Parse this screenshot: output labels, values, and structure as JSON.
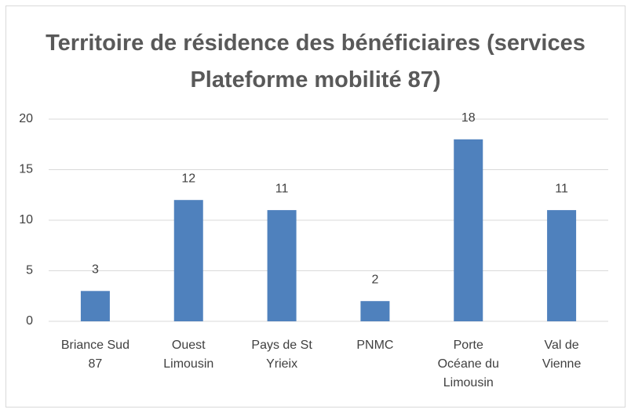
{
  "chart_data": {
    "type": "bar",
    "title": "Territoire de résidence des bénéficiaires (services Plateforme mobilité 87)",
    "categories": [
      "Briance Sud 87",
      "Ouest Limousin",
      "Pays de St Yrieix",
      "PNMC",
      "Porte Océane du Limousin",
      "Val de Vienne"
    ],
    "values": [
      3,
      12,
      11,
      2,
      18,
      11
    ],
    "color": "#4f81bd",
    "ylim": [
      0,
      20
    ],
    "yticks": [
      0,
      5,
      10,
      15,
      20
    ],
    "grid": true
  }
}
